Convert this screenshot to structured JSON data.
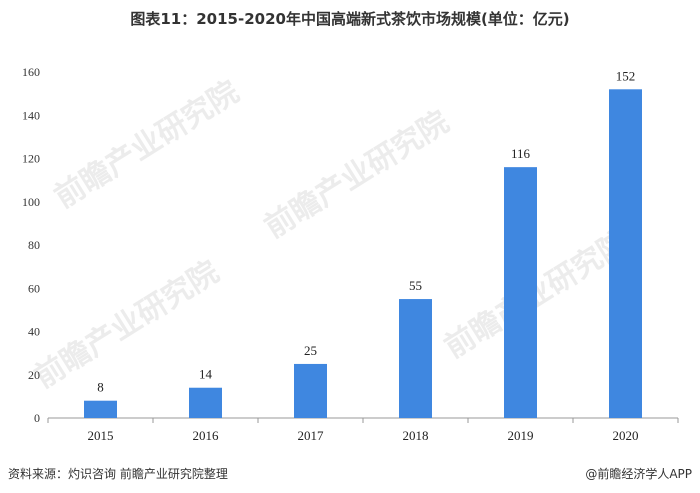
{
  "title": "图表11：2015-2020年中国高端新式茶饮市场规模(单位：亿元)",
  "footer": {
    "source": "资料来源：灼识咨询 前瞻产业研究院整理",
    "credit": "@前瞻经济学人APP"
  },
  "watermark": "前瞻产业研究院",
  "colors": {
    "bar": "#3f87e0",
    "axis": "#999999"
  },
  "chart_data": {
    "type": "bar",
    "categories": [
      "2015",
      "2016",
      "2017",
      "2018",
      "2019",
      "2020"
    ],
    "values": [
      8,
      14,
      25,
      55,
      116,
      152
    ],
    "data_labels": [
      "8",
      "14",
      "25",
      "55",
      "116",
      "152"
    ],
    "ylim": [
      0,
      160
    ],
    "yticks": [
      "0",
      "20",
      "40",
      "60",
      "80",
      "100",
      "120",
      "140",
      "160"
    ],
    "xlabel": "",
    "ylabel": "",
    "grid": false,
    "legend": "none"
  }
}
